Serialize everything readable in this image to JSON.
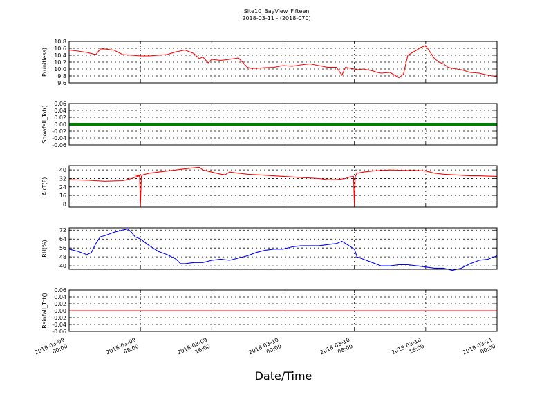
{
  "figure": {
    "title": "Site10_BayView_Fifteen",
    "subtitle": "2018-03-11 - (2018-070)",
    "xlabel": "Date/Time"
  },
  "chart_data": [
    {
      "type": "line",
      "ylabel": "P(unitless)",
      "ylim": [
        9.6,
        10.8
      ],
      "yticks": [
        "9.6",
        "9.8",
        "10.0",
        "10.2",
        "10.4",
        "10.6",
        "10.8"
      ],
      "color": "#ff0000",
      "grid": true,
      "x": [
        0,
        1,
        2,
        3,
        3.5,
        4,
        5,
        6,
        7,
        8,
        9,
        10,
        11,
        12,
        13,
        14,
        14.6,
        15,
        15.6,
        16,
        17,
        18,
        19,
        20,
        20.4,
        21,
        22,
        23,
        24,
        25,
        26,
        27,
        28,
        29,
        30,
        30.6,
        31,
        32,
        32.3,
        33,
        34,
        34.6,
        35,
        36,
        37,
        37.5,
        38,
        39,
        39.4,
        40,
        41,
        41.5,
        42,
        42.5,
        43,
        44,
        45,
        46,
        47,
        48
      ],
      "values": [
        10.55,
        10.52,
        10.48,
        10.42,
        10.58,
        10.58,
        10.55,
        10.42,
        10.4,
        10.38,
        10.38,
        10.4,
        10.42,
        10.5,
        10.55,
        10.45,
        10.3,
        10.35,
        10.18,
        10.28,
        10.25,
        10.28,
        10.32,
        10.05,
        10.02,
        10.02,
        10.04,
        10.05,
        10.1,
        10.08,
        10.12,
        10.15,
        10.1,
        10.05,
        10.05,
        9.82,
        10.05,
        10.0,
        9.98,
        10.0,
        9.95,
        9.9,
        9.88,
        9.9,
        9.75,
        9.85,
        10.4,
        10.55,
        10.62,
        10.68,
        10.3,
        10.2,
        10.15,
        10.05,
        10.02,
        9.98,
        9.9,
        9.88,
        9.82,
        9.78
      ]
    },
    {
      "type": "line",
      "ylabel": "Snowfall_Tot()",
      "ylim": [
        -0.06,
        0.06
      ],
      "yticks": [
        "-0.06",
        "-0.04",
        "-0.02",
        "0.00",
        "0.02",
        "0.04",
        "0.06"
      ],
      "color": "#008000",
      "grid": true,
      "x": [
        0,
        48
      ],
      "values": [
        0,
        0
      ]
    },
    {
      "type": "line",
      "ylabel": "AirT(F)",
      "ylim": [
        5,
        44
      ],
      "yticks": [
        "8",
        "16",
        "24",
        "32",
        "40"
      ],
      "color": "#ff0000",
      "grid": true,
      "x": [
        0,
        2,
        4,
        6,
        7,
        8,
        7.5,
        7.9,
        8.0,
        8.1,
        8.3,
        9,
        10,
        11,
        12,
        13,
        14,
        14.6,
        15,
        16,
        17,
        17.5,
        18,
        19,
        20,
        22,
        24,
        26,
        28,
        29,
        30,
        31,
        31.5,
        31.9,
        32.0,
        32.1,
        32.3,
        33,
        34,
        35,
        36,
        37,
        38,
        39,
        40,
        41,
        42,
        43,
        44,
        45,
        46,
        47,
        48
      ],
      "values": [
        31,
        30.5,
        29.5,
        30,
        32,
        35,
        35,
        34,
        6,
        34,
        35.5,
        37,
        38,
        39,
        40,
        41,
        42,
        42.5,
        40,
        38,
        36,
        35.5,
        38,
        37,
        36,
        35,
        34,
        33,
        32,
        31,
        31,
        32,
        33.5,
        34,
        6,
        34,
        37,
        38,
        39,
        39.5,
        40,
        39.8,
        39.5,
        39.5,
        39,
        37,
        36,
        35.5,
        35,
        34.5,
        34.5,
        34.2,
        34
      ]
    },
    {
      "type": "line",
      "ylabel": "RH(%)",
      "ylim": [
        37,
        74
      ],
      "yticks": [
        "40",
        "48",
        "56",
        "64",
        "72"
      ],
      "color": "#0000ff",
      "grid": true,
      "x": [
        0,
        1,
        2,
        2.5,
        3,
        3.5,
        4,
        5,
        6,
        6.6,
        7,
        7.4,
        8,
        9,
        10,
        11,
        12,
        12.5,
        13,
        14,
        15,
        16,
        17,
        18,
        19,
        20,
        21,
        22,
        23,
        24,
        25,
        26,
        27,
        28,
        29,
        30,
        30.6,
        31,
        32,
        32.3,
        33,
        34,
        35,
        36,
        37,
        38,
        39,
        40,
        41,
        42,
        43,
        44,
        45,
        46,
        47,
        48
      ],
      "values": [
        55,
        53,
        50,
        52,
        60,
        66,
        67,
        70,
        72,
        73,
        70,
        66,
        64,
        58,
        53,
        50,
        46,
        42,
        42,
        43,
        43,
        45,
        46,
        45,
        47,
        49,
        52,
        54,
        55,
        55,
        57,
        58,
        58,
        58,
        59,
        60,
        62,
        60,
        55,
        48,
        46,
        43,
        40,
        40,
        41,
        41,
        40,
        39,
        38,
        38,
        36,
        38,
        42,
        45,
        46,
        49
      ]
    },
    {
      "type": "line",
      "ylabel": "Rainfall_Tot()",
      "ylim": [
        -0.06,
        0.06
      ],
      "yticks": [
        "-0.06",
        "-0.04",
        "-0.02",
        "0.00",
        "0.02",
        "0.04",
        "0.06"
      ],
      "color": "#ff0000",
      "grid": true,
      "x": [
        0,
        48
      ],
      "values": [
        0,
        0
      ]
    }
  ],
  "xaxis": {
    "xlim": [
      0,
      48
    ],
    "ticks": [
      {
        "x": 0,
        "l1": "2018-03-09",
        "l2": "00:00"
      },
      {
        "x": 8,
        "l1": "2018-03-09",
        "l2": "08:00"
      },
      {
        "x": 16,
        "l1": "2018-03-09",
        "l2": "16:00"
      },
      {
        "x": 24,
        "l1": "2018-03-10",
        "l2": "00:00"
      },
      {
        "x": 32,
        "l1": "2018-03-10",
        "l2": "08:00"
      },
      {
        "x": 40,
        "l1": "2018-03-10",
        "l2": "16:00"
      },
      {
        "x": 48,
        "l1": "2018-03-11",
        "l2": "00:00"
      }
    ]
  }
}
